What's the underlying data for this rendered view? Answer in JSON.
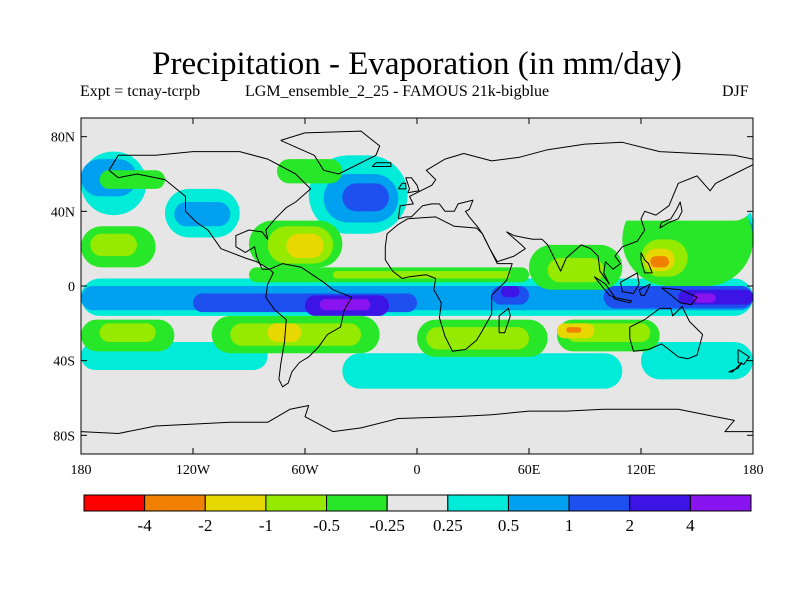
{
  "chart_data": {
    "type": "heatmap",
    "title": "Precipitation - Evaporation (in mm/day)",
    "subtitle_left": "Expt = tcnay-tcrpb",
    "subtitle_center": "LGM_ensemble_2_25 - FAMOUS 21k-bigblue",
    "season": "DJF",
    "x_ticks": [
      "180",
      "120W",
      "60W",
      "0",
      "60E",
      "120E",
      "180"
    ],
    "x_values": [
      -180,
      -120,
      -60,
      0,
      60,
      120,
      180
    ],
    "y_ticks": [
      "80N",
      "40N",
      "0",
      "40S",
      "80S"
    ],
    "y_values": [
      80,
      40,
      0,
      -40,
      -80
    ],
    "xlim": [
      -180,
      180
    ],
    "ylim": [
      -90,
      90
    ],
    "colorbar": {
      "labels": [
        "-4",
        "-2",
        "-1",
        "-0.5",
        "-0.25",
        "0.25",
        "0.5",
        "1",
        "2",
        "4"
      ],
      "colors": [
        "#ff0000",
        "#f08000",
        "#e6d800",
        "#96ea00",
        "#28e628",
        "#e6e6e6",
        "#00ecd8",
        "#00a0f0",
        "#1e50f0",
        "#3c14e6",
        "#8a14f0"
      ]
    },
    "fields": [
      {
        "level": 6,
        "lon": [
          -180,
          -145
        ],
        "lat": [
          38,
          72
        ]
      },
      {
        "level": 6,
        "lon": [
          -135,
          -95
        ],
        "lat": [
          26,
          52
        ]
      },
      {
        "level": 6,
        "lon": [
          -58,
          -5
        ],
        "lat": [
          28,
          70
        ]
      },
      {
        "level": 6,
        "lon": [
          150,
          180
        ],
        "lat": [
          18,
          48
        ]
      },
      {
        "level": 6,
        "lon": [
          -180,
          180
        ],
        "lat": [
          -16,
          4
        ]
      },
      {
        "level": 6,
        "lon": [
          -180,
          -80
        ],
        "lat": [
          -45,
          -30
        ]
      },
      {
        "level": 6,
        "lon": [
          -40,
          110
        ],
        "lat": [
          -55,
          -36
        ]
      },
      {
        "level": 6,
        "lon": [
          120,
          180
        ],
        "lat": [
          -50,
          -30
        ]
      },
      {
        "level": 7,
        "lon": [
          -180,
          -150
        ],
        "lat": [
          48,
          68
        ]
      },
      {
        "level": 7,
        "lon": [
          -130,
          -100
        ],
        "lat": [
          32,
          45
        ]
      },
      {
        "level": 7,
        "lon": [
          -50,
          -10
        ],
        "lat": [
          34,
          60
        ]
      },
      {
        "level": 7,
        "lon": [
          -180,
          180
        ],
        "lat": [
          -13,
          0
        ]
      },
      {
        "level": 7,
        "lon": [
          150,
          180
        ],
        "lat": [
          22,
          38
        ]
      },
      {
        "level": 7,
        "lon": [
          45,
          60
        ],
        "lat": [
          -30,
          -20
        ]
      },
      {
        "level": 8,
        "lon": [
          -40,
          -15
        ],
        "lat": [
          40,
          55
        ]
      },
      {
        "level": 8,
        "lon": [
          -120,
          0
        ],
        "lat": [
          -14,
          -4
        ]
      },
      {
        "level": 8,
        "lon": [
          40,
          60
        ],
        "lat": [
          -10,
          0
        ]
      },
      {
        "level": 8,
        "lon": [
          100,
          180
        ],
        "lat": [
          -12,
          0
        ]
      },
      {
        "level": 9,
        "lon": [
          -60,
          -15
        ],
        "lat": [
          -16,
          -5
        ]
      },
      {
        "level": 9,
        "lon": [
          45,
          55
        ],
        "lat": [
          -6,
          0
        ]
      },
      {
        "level": 9,
        "lon": [
          140,
          180
        ],
        "lat": [
          -10,
          -2
        ]
      },
      {
        "level": 10,
        "lon": [
          -52,
          -25
        ],
        "lat": [
          -13,
          -7
        ]
      },
      {
        "level": 10,
        "lon": [
          148,
          160
        ],
        "lat": [
          -9,
          -4
        ]
      },
      {
        "level": 4,
        "lon": [
          -180,
          -140
        ],
        "lat": [
          10,
          32
        ]
      },
      {
        "level": 4,
        "lon": [
          -90,
          -40
        ],
        "lat": [
          10,
          35
        ]
      },
      {
        "level": 4,
        "lon": [
          -90,
          60
        ],
        "lat": [
          2,
          10
        ]
      },
      {
        "level": 4,
        "lon": [
          60,
          110
        ],
        "lat": [
          -2,
          22
        ]
      },
      {
        "level": 4,
        "lon": [
          110,
          180
        ],
        "lat": [
          0,
          50
        ]
      },
      {
        "level": 4,
        "lon": [
          -180,
          -130
        ],
        "lat": [
          -35,
          -18
        ]
      },
      {
        "level": 4,
        "lon": [
          -110,
          -20
        ],
        "lat": [
          -36,
          -16
        ]
      },
      {
        "level": 4,
        "lon": [
          0,
          70
        ],
        "lat": [
          -38,
          -18
        ]
      },
      {
        "level": 4,
        "lon": [
          75,
          130
        ],
        "lat": [
          -35,
          -18
        ]
      },
      {
        "level": 4,
        "lon": [
          -170,
          -135
        ],
        "lat": [
          52,
          62
        ]
      },
      {
        "level": 4,
        "lon": [
          -75,
          -40
        ],
        "lat": [
          55,
          68
        ]
      },
      {
        "level": 3,
        "lon": [
          -175,
          -150
        ],
        "lat": [
          16,
          28
        ]
      },
      {
        "level": 3,
        "lon": [
          -80,
          -45
        ],
        "lat": [
          12,
          32
        ]
      },
      {
        "level": 3,
        "lon": [
          -45,
          50
        ],
        "lat": [
          4,
          8
        ]
      },
      {
        "level": 3,
        "lon": [
          70,
          100
        ],
        "lat": [
          2,
          15
        ]
      },
      {
        "level": 3,
        "lon": [
          120,
          145
        ],
        "lat": [
          5,
          25
        ]
      },
      {
        "level": 3,
        "lon": [
          -170,
          -140
        ],
        "lat": [
          -30,
          -20
        ]
      },
      {
        "level": 3,
        "lon": [
          -100,
          -30
        ],
        "lat": [
          -32,
          -20
        ]
      },
      {
        "level": 3,
        "lon": [
          5,
          60
        ],
        "lat": [
          -34,
          -22
        ]
      },
      {
        "level": 3,
        "lon": [
          80,
          125
        ],
        "lat": [
          -30,
          -20
        ]
      },
      {
        "level": 2,
        "lon": [
          -70,
          -50
        ],
        "lat": [
          15,
          28
        ]
      },
      {
        "level": 2,
        "lon": [
          -80,
          -62
        ],
        "lat": [
          -30,
          -20
        ]
      },
      {
        "level": 2,
        "lon": [
          75,
          95
        ],
        "lat": [
          -28,
          -20
        ]
      },
      {
        "level": 2,
        "lon": [
          122,
          138
        ],
        "lat": [
          8,
          20
        ]
      },
      {
        "level": 1,
        "lon": [
          125,
          135
        ],
        "lat": [
          10,
          16
        ]
      },
      {
        "level": 1,
        "lon": [
          80,
          88
        ],
        "lat": [
          -25,
          -22
        ]
      },
      {
        "level": 5,
        "lon": [
          80,
          180
        ],
        "lat": [
          35,
          55
        ]
      }
    ]
  }
}
